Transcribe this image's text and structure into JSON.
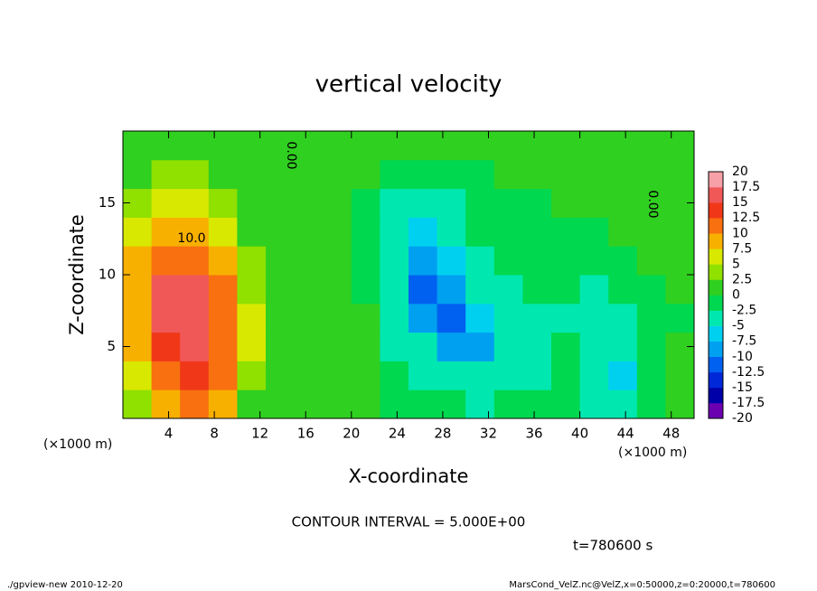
{
  "chart_data": {
    "type": "contour",
    "title": "vertical velocity",
    "x_label": "X-coordinate",
    "y_label": "Z-coordinate",
    "x_unit": "(×1000 m)",
    "contour_note": "CONTOUR INTERVAL = 5.000E+00",
    "time_note": "t=780600 s",
    "footer_left": "./gpview-new  2010-12-20",
    "footer_right": "MarsCond_VelZ.nc@VelZ,x=0:50000,z=0:20000,t=780600",
    "annotations": [
      "10.0",
      "0.00",
      "0.00"
    ],
    "xlim": [
      0,
      50
    ],
    "xticks": [
      4,
      8,
      12,
      16,
      20,
      24,
      28,
      32,
      36,
      40,
      44,
      48
    ],
    "ylim": [
      0,
      20
    ],
    "yticks": [
      5,
      10,
      15
    ],
    "x": [
      1.25,
      3.75,
      6.25,
      8.75,
      11.25,
      13.75,
      16.25,
      18.75,
      21.25,
      23.75,
      26.25,
      28.75,
      31.25,
      33.75,
      36.25,
      38.75,
      41.25,
      43.75,
      46.25,
      48.75
    ],
    "y": [
      1,
      3,
      5,
      7,
      9,
      11,
      13,
      15,
      17,
      19
    ],
    "z": [
      [
        4,
        9,
        11,
        8,
        2,
        1,
        0,
        1,
        0,
        -1,
        -2,
        -2,
        -3,
        -2,
        -2,
        -1,
        -3,
        -4,
        -1,
        0
      ],
      [
        6,
        12,
        13,
        10,
        4,
        1,
        1,
        0,
        0,
        -2,
        -3,
        -4,
        -5,
        -3,
        -3,
        -2,
        -5,
        -6,
        -2,
        0
      ],
      [
        8,
        14,
        15,
        11,
        5,
        1,
        0,
        0,
        0,
        -3,
        -5,
        -8,
        -8,
        -4,
        -3,
        -2,
        -5,
        -5,
        -2,
        0
      ],
      [
        9,
        15,
        16,
        11,
        5,
        1,
        0,
        0,
        0,
        -3,
        -9,
        -11,
        -7,
        -4,
        -3,
        -3,
        -4,
        -3,
        -2,
        -1
      ],
      [
        9,
        15,
        16,
        10,
        4,
        1,
        0,
        0,
        -1,
        -4,
        -11,
        -10,
        -5,
        -3,
        -2,
        -2,
        -3,
        -2,
        -1,
        0
      ],
      [
        8,
        12,
        12,
        8,
        3,
        1,
        0,
        0,
        -1,
        -5,
        -9,
        -7,
        -3,
        -2,
        -2,
        -1,
        -2,
        -1,
        0,
        0
      ],
      [
        5,
        8,
        8,
        5,
        2,
        1,
        1,
        0,
        -1,
        -4,
        -7,
        -5,
        -2,
        -1,
        -1,
        -1,
        -1,
        0,
        0,
        1
      ],
      [
        3,
        5,
        5,
        3,
        2,
        1,
        1,
        0,
        -1,
        -3,
        -4,
        -3,
        -2,
        -1,
        -1,
        0,
        0,
        0,
        1,
        1
      ],
      [
        2,
        3,
        3,
        2,
        2,
        1,
        1,
        1,
        0,
        -1,
        -2,
        -1,
        -1,
        0,
        0,
        0,
        1,
        1,
        1,
        1
      ],
      [
        2,
        2,
        2,
        2,
        2,
        1,
        1,
        1,
        1,
        0,
        0,
        0,
        0,
        1,
        1,
        1,
        1,
        1,
        1,
        1
      ]
    ],
    "levels": [
      -20,
      -17.5,
      -15,
      -12.5,
      -10,
      -7.5,
      -5,
      -2.5,
      0,
      2.5,
      5,
      7.5,
      10,
      12.5,
      15,
      17.5,
      20
    ],
    "colors": [
      "#6a00b0",
      "#0000a8",
      "#0028d8",
      "#0060f0",
      "#00a0f0",
      "#00d0f0",
      "#00e8b0",
      "#00d850",
      "#30d020",
      "#90e000",
      "#d8e800",
      "#f8b000",
      "#f87010",
      "#f03818",
      "#f05858",
      "#f8a0a8"
    ]
  }
}
